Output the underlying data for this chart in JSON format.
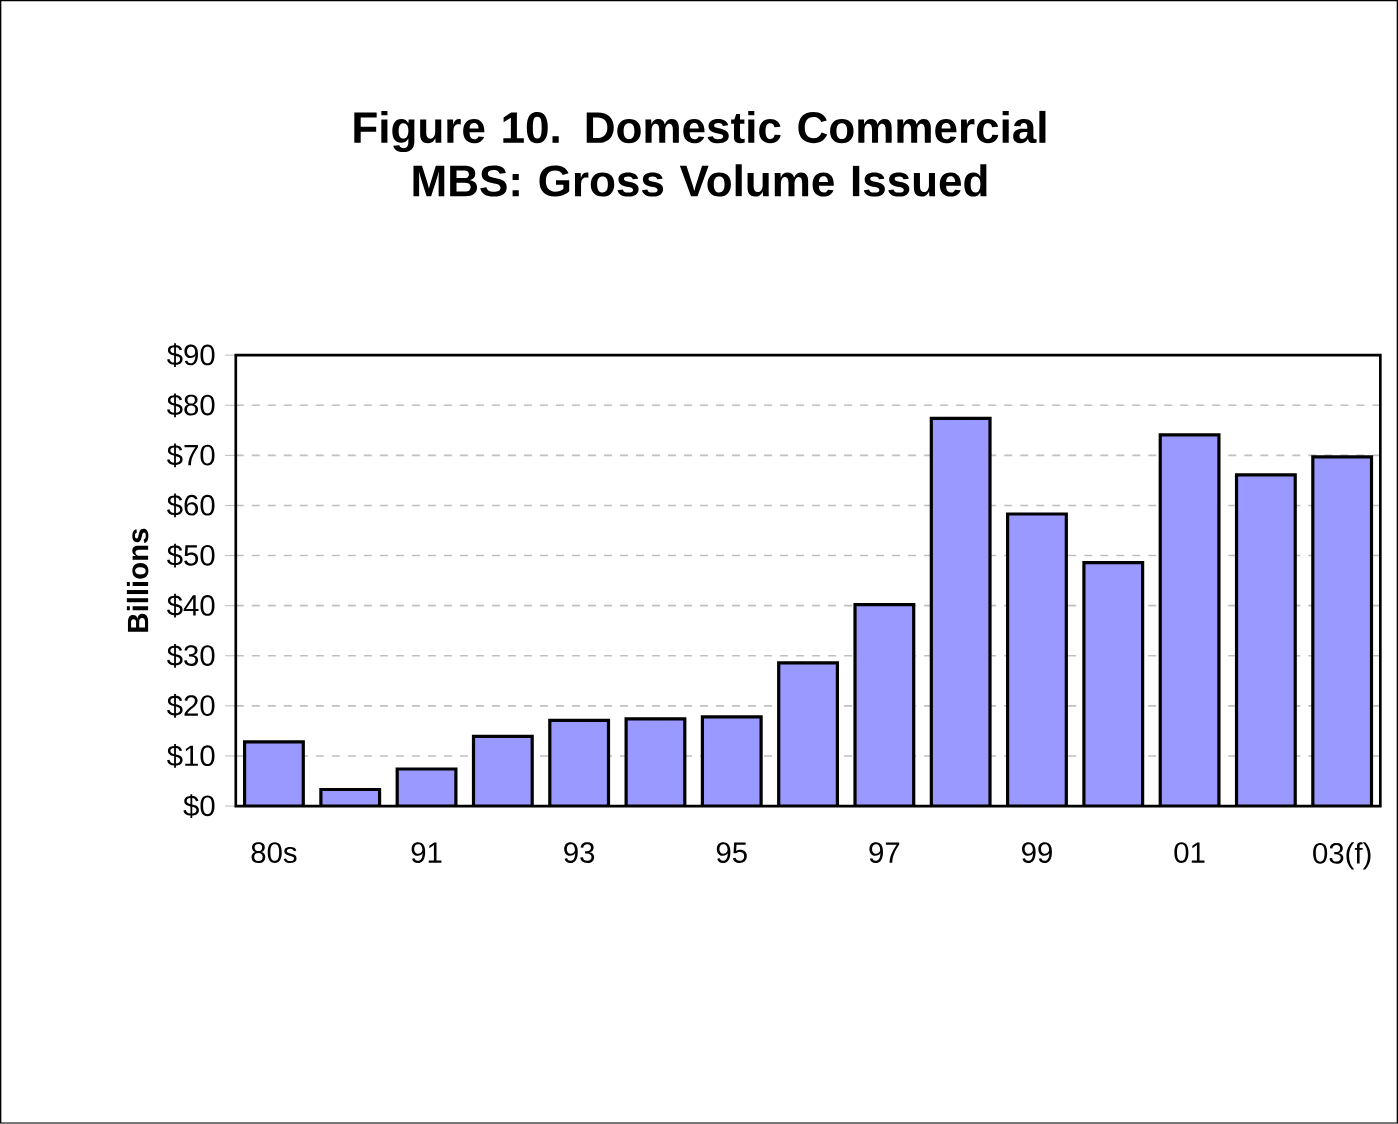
{
  "chart_data": {
    "type": "bar",
    "title": "Figure 10. Domestic Commercial MBS: Gross Volume Issued",
    "ylabel": "Billions",
    "categories": [
      "80s",
      null,
      "91",
      null,
      "93",
      null,
      "95",
      null,
      "97",
      null,
      "99",
      null,
      "01",
      null,
      "03(f)"
    ],
    "values": [
      12.8,
      3.3,
      7.4,
      13.9,
      17.1,
      17.4,
      17.8,
      28.6,
      40.2,
      77.4,
      58.3,
      48.6,
      74.1,
      66.1,
      69.7
    ],
    "color": "#9999ff",
    "ylim": [
      0,
      90
    ],
    "yticks": [
      {
        "value": 0,
        "label": "$0"
      },
      {
        "value": 10,
        "label": "$10"
      },
      {
        "value": 20,
        "label": "$20"
      },
      {
        "value": 30,
        "label": "$30"
      },
      {
        "value": 40,
        "label": "$40"
      },
      {
        "value": 50,
        "label": "$50"
      },
      {
        "value": 60,
        "label": "$60"
      },
      {
        "value": 70,
        "label": "$70"
      },
      {
        "value": 80,
        "label": "$80"
      },
      {
        "value": 90,
        "label": "$90"
      }
    ],
    "grid": "y"
  }
}
